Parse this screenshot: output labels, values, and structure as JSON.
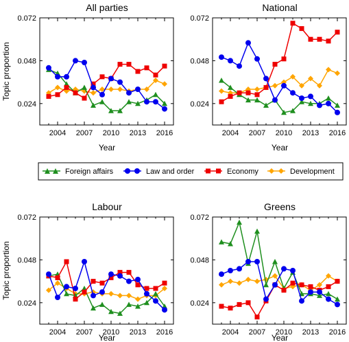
{
  "chart_data": [
    {
      "type": "line",
      "title": "All parties",
      "xlabel": "Year",
      "ylabel": "Topic proportion",
      "ylim": [
        0.012,
        0.072
      ],
      "yticks": [
        "0.024",
        "0.048",
        "0.072"
      ],
      "xlim": [
        2002,
        2017
      ],
      "xticks": [
        "2004",
        "2007",
        "2010",
        "2013",
        "2016"
      ],
      "x": [
        2003,
        2004,
        2005,
        2006,
        2007,
        2008,
        2009,
        2010,
        2011,
        2012,
        2013,
        2014,
        2015,
        2016
      ],
      "series": [
        {
          "name": "Foreign affairs",
          "values": [
            0.043,
            0.041,
            0.035,
            0.03,
            0.033,
            0.023,
            0.025,
            0.02,
            0.02,
            0.025,
            0.024,
            0.026,
            0.029,
            0.024
          ]
        },
        {
          "name": "Law and order",
          "values": [
            0.044,
            0.039,
            0.039,
            0.048,
            0.047,
            0.033,
            0.029,
            0.038,
            0.036,
            0.03,
            0.032,
            0.025,
            0.025,
            0.021
          ]
        },
        {
          "name": "Economy",
          "values": [
            0.028,
            0.029,
            0.033,
            0.03,
            0.027,
            0.035,
            0.039,
            0.038,
            0.046,
            0.046,
            0.042,
            0.044,
            0.04,
            0.045
          ]
        },
        {
          "name": "Development",
          "values": [
            0.03,
            0.033,
            0.031,
            0.032,
            0.031,
            0.03,
            0.032,
            0.032,
            0.032,
            0.031,
            0.032,
            0.032,
            0.037,
            0.035
          ]
        }
      ]
    },
    {
      "type": "line",
      "title": "National",
      "xlabel": "Year",
      "ylabel": "",
      "ylim": [
        0.012,
        0.072
      ],
      "yticks": [
        "0.024",
        "0.048",
        "0.072"
      ],
      "xlim": [
        2002,
        2017
      ],
      "xticks": [
        "2004",
        "2007",
        "2010",
        "2013",
        "2016"
      ],
      "x": [
        2003,
        2004,
        2005,
        2006,
        2007,
        2008,
        2009,
        2010,
        2011,
        2012,
        2013,
        2014,
        2015,
        2016
      ],
      "series": [
        {
          "name": "Foreign affairs",
          "values": [
            0.037,
            0.033,
            0.029,
            0.026,
            0.026,
            0.023,
            0.026,
            0.019,
            0.02,
            0.025,
            0.024,
            0.024,
            0.027,
            0.023
          ]
        },
        {
          "name": "Law and order",
          "values": [
            0.05,
            0.048,
            0.045,
            0.058,
            0.049,
            0.038,
            0.026,
            0.034,
            0.03,
            0.027,
            0.028,
            0.023,
            0.024,
            0.019
          ]
        },
        {
          "name": "Economy",
          "values": [
            0.025,
            0.028,
            0.03,
            0.03,
            0.029,
            0.033,
            0.046,
            0.049,
            0.069,
            0.066,
            0.06,
            0.06,
            0.059,
            0.064
          ]
        },
        {
          "name": "Development",
          "values": [
            0.031,
            0.03,
            0.03,
            0.032,
            0.032,
            0.033,
            0.034,
            0.036,
            0.039,
            0.034,
            0.038,
            0.034,
            0.043,
            0.041
          ]
        }
      ]
    },
    {
      "type": "line",
      "title": "Labour",
      "xlabel": "Year",
      "ylabel": "Topic proportion",
      "ylim": [
        0.012,
        0.072
      ],
      "yticks": [
        "0.024",
        "0.048",
        "0.072"
      ],
      "xlim": [
        2002,
        2017
      ],
      "xticks": [
        "2004",
        "2007",
        "2010",
        "2013",
        "2016"
      ],
      "x": [
        2003,
        2004,
        2005,
        2006,
        2007,
        2008,
        2009,
        2010,
        2011,
        2012,
        2013,
        2014,
        2015,
        2016
      ],
      "series": [
        {
          "name": "Foreign affairs",
          "values": [
            0.039,
            0.04,
            0.029,
            0.028,
            0.032,
            0.021,
            0.023,
            0.019,
            0.018,
            0.023,
            0.022,
            0.024,
            0.029,
            0.022
          ]
        },
        {
          "name": "Law and order",
          "values": [
            0.04,
            0.027,
            0.033,
            0.032,
            0.047,
            0.028,
            0.03,
            0.04,
            0.039,
            0.036,
            0.037,
            0.029,
            0.025,
            0.02
          ]
        },
        {
          "name": "Economy",
          "values": [
            0.039,
            0.038,
            0.047,
            0.026,
            0.03,
            0.036,
            0.035,
            0.038,
            0.041,
            0.041,
            0.034,
            0.032,
            0.032,
            0.035
          ]
        },
        {
          "name": "Development",
          "values": [
            0.031,
            0.035,
            0.032,
            0.029,
            0.029,
            0.03,
            0.029,
            0.029,
            0.028,
            0.028,
            0.026,
            0.028,
            0.028,
            0.032
          ]
        }
      ]
    },
    {
      "type": "line",
      "title": "Greens",
      "xlabel": "Year",
      "ylabel": "",
      "ylim": [
        0.012,
        0.072
      ],
      "yticks": [
        "0.024",
        "0.048",
        "0.072"
      ],
      "xlim": [
        2002,
        2017
      ],
      "xticks": [
        "2004",
        "2007",
        "2010",
        "2013",
        "2016"
      ],
      "x": [
        2003,
        2004,
        2005,
        2006,
        2007,
        2008,
        2009,
        2010,
        2011,
        2012,
        2013,
        2014,
        2015,
        2016
      ],
      "series": [
        {
          "name": "Foreign affairs",
          "values": [
            0.058,
            0.057,
            0.069,
            0.046,
            0.064,
            0.034,
            0.047,
            0.032,
            0.041,
            0.029,
            0.029,
            0.028,
            0.029,
            0.026
          ]
        },
        {
          "name": "Law and order",
          "values": [
            0.04,
            0.042,
            0.043,
            0.047,
            0.047,
            0.026,
            0.034,
            0.043,
            0.042,
            0.025,
            0.03,
            0.03,
            0.026,
            0.023
          ]
        },
        {
          "name": "Economy",
          "values": [
            0.022,
            0.021,
            0.023,
            0.024,
            0.016,
            0.025,
            0.034,
            0.031,
            0.035,
            0.034,
            0.033,
            0.031,
            0.033,
            0.036
          ]
        },
        {
          "name": "Development",
          "values": [
            0.034,
            0.036,
            0.035,
            0.037,
            0.036,
            0.037,
            0.039,
            0.032,
            0.033,
            0.034,
            0.031,
            0.034,
            0.039,
            0.036
          ]
        }
      ]
    }
  ],
  "legend": {
    "placement": "center, between panel rows",
    "items": [
      "Foreign affairs",
      "Law and order",
      "Economy",
      "Development"
    ]
  },
  "colors": {
    "Foreign affairs": "#1f8f1f",
    "Law and order": "#0000ee",
    "Economy": "#ee0000",
    "Development": "#ffa500"
  },
  "markers": {
    "Foreign affairs": "triangle",
    "Law and order": "circle",
    "Economy": "square",
    "Development": "diamond"
  }
}
